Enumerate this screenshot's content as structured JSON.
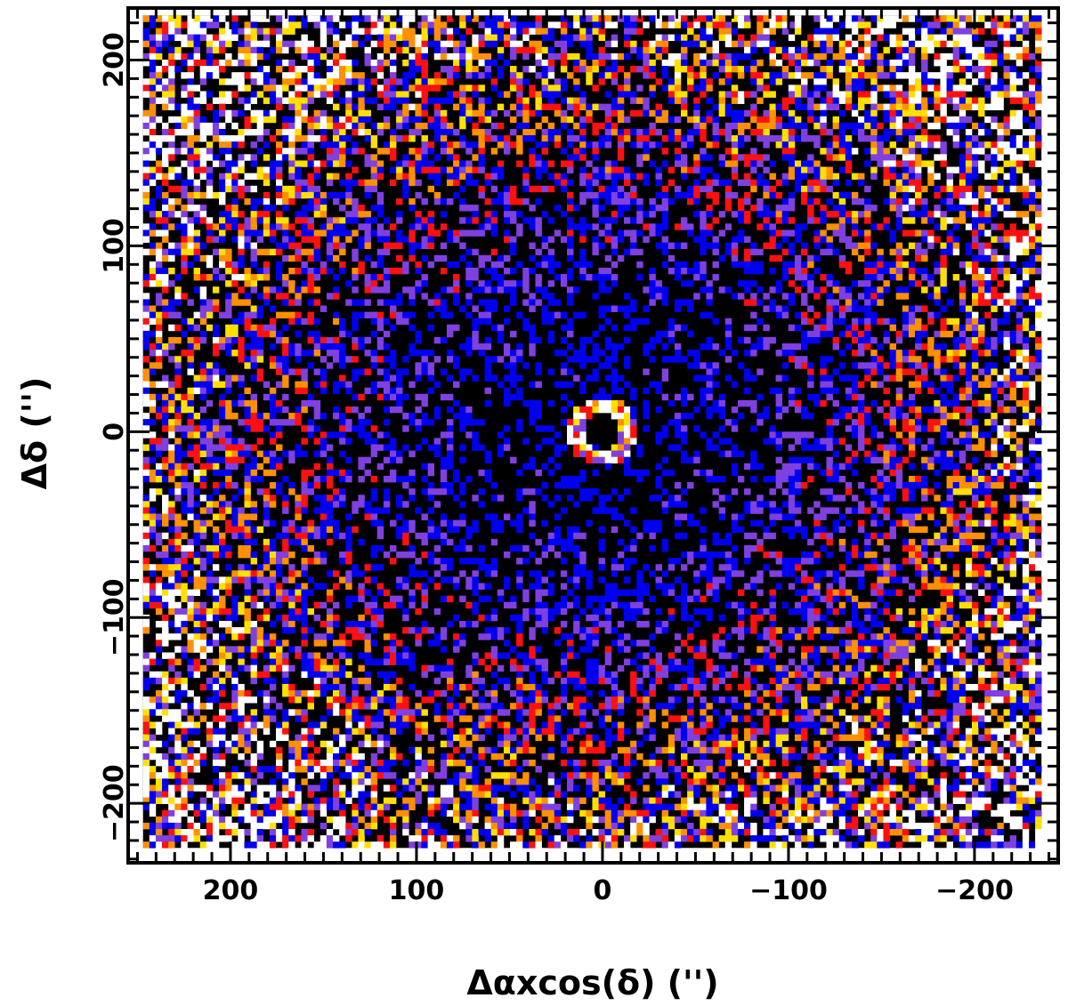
{
  "chart_data": {
    "type": "heatmap",
    "title": "",
    "xlabel": "Δαxcos(δ)  ('')",
    "ylabel": "Δδ  ('')",
    "xlim": [
      255,
      -245
    ],
    "ylim": [
      -232,
      228
    ],
    "x_reversed": true,
    "x_ticks": [
      200,
      100,
      0,
      -100,
      -200
    ],
    "x_tick_labels": [
      "200",
      "100",
      "0",
      "−100",
      "−200"
    ],
    "y_ticks": [
      200,
      100,
      0,
      -100,
      -200
    ],
    "y_tick_labels": [
      "200",
      "100",
      "0",
      "−100",
      "−200"
    ],
    "map_extent": {
      "x": [
        247,
        -236
      ],
      "y": [
        -224,
        224
      ]
    },
    "colormap": [
      "#000000",
      "#0000f0",
      "#8040e0",
      "#ff1010",
      "#ff9000",
      "#ffe000",
      "#ffffff"
    ],
    "features": [
      {
        "label": "central ring",
        "center": [
          0,
          0
        ],
        "radius_arcsec": 14,
        "level": "high"
      }
    ],
    "grid": false,
    "legend": "none"
  }
}
